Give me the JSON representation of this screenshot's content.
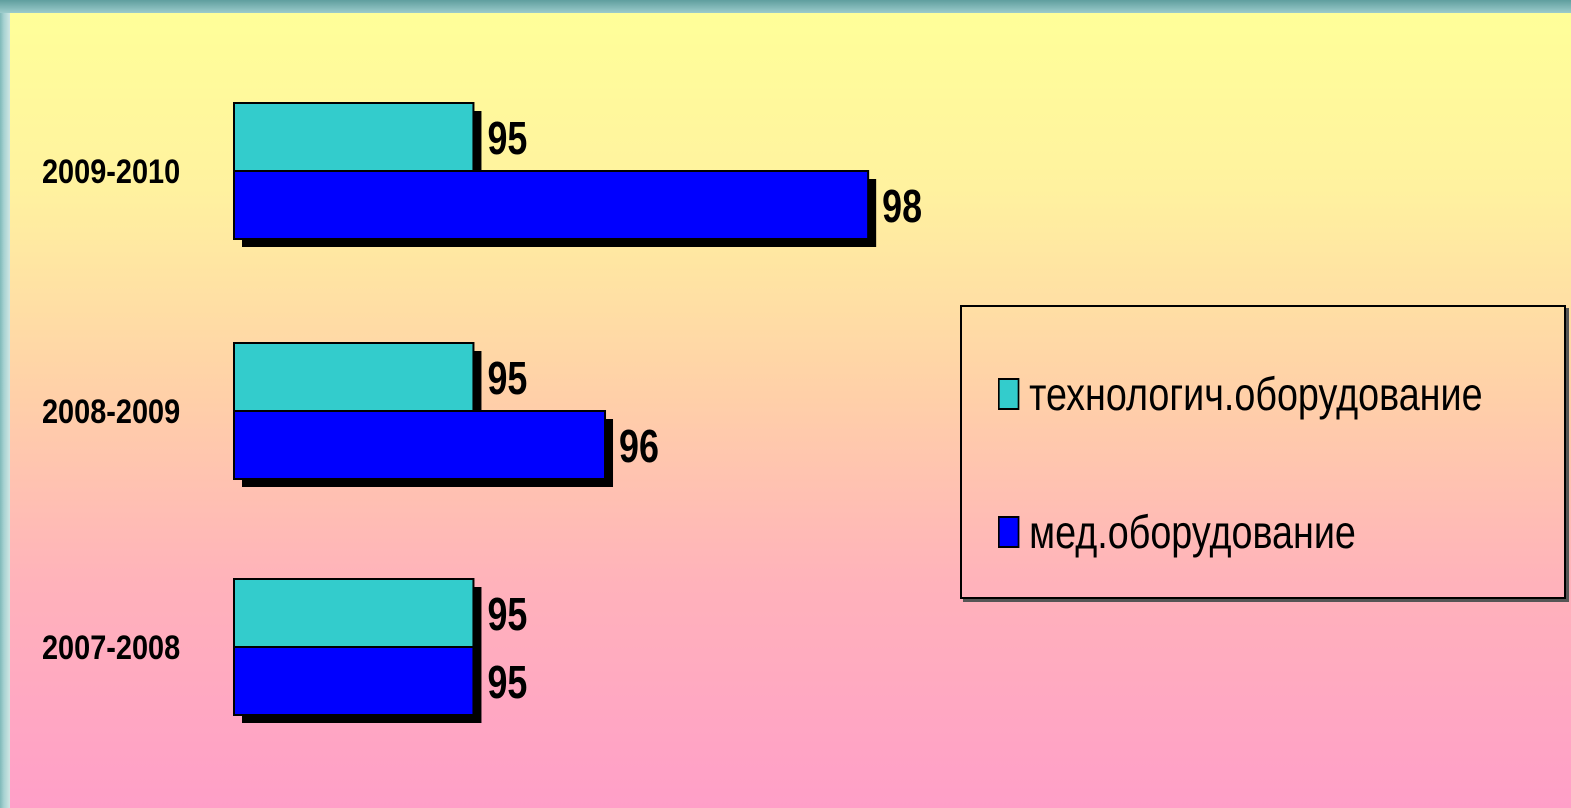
{
  "chart_data": {
    "type": "bar",
    "orientation": "horizontal",
    "categories": [
      "2009-2010",
      "2008-2009",
      "2007-2008"
    ],
    "series": [
      {
        "name": "технологич.оборудование",
        "color": "#33cccc",
        "values": [
          95,
          95,
          95
        ]
      },
      {
        "name": "мед.оборудование",
        "color": "#0000ff",
        "values": [
          98,
          96,
          95
        ]
      }
    ],
    "value_labels": true,
    "legend_position": "right",
    "grid": false,
    "axes_visible": false,
    "xlim": [
      93.18,
      98.09
    ]
  }
}
